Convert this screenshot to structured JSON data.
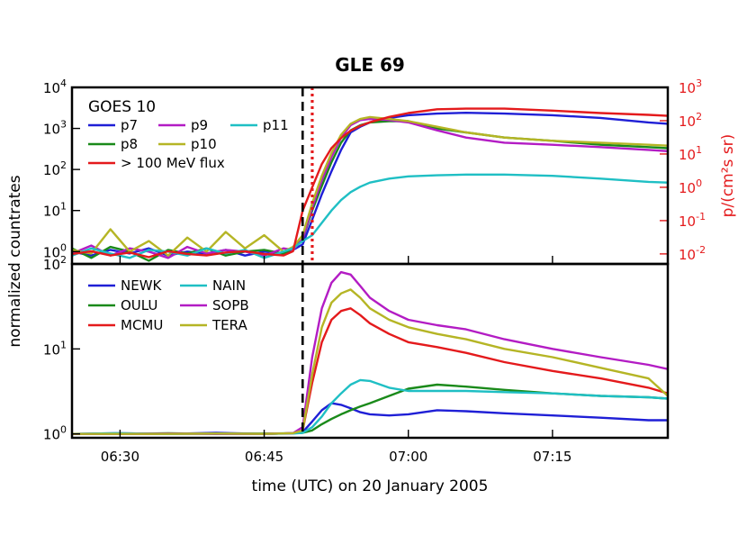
{
  "chart_data": {
    "title": "GLE 69",
    "xlabel": "time (UTC) on 20 January 2005",
    "ylabel": "normalized countrates",
    "x_tick_labels": [
      "06:30",
      "06:45",
      "07:00",
      "07:15"
    ],
    "x_ticks_min": [
      30,
      45,
      60,
      75
    ],
    "x_range_min": [
      25,
      87
    ],
    "panels": [
      {
        "type": "line",
        "yscale": "log",
        "ylim": [
          0.5,
          10000
        ],
        "y_ticks": [
          "10^0",
          "10^1",
          "10^2",
          "10^3",
          "10^4"
        ],
        "y_tick_values": [
          1,
          10,
          100,
          1000,
          10000
        ],
        "right_axis": {
          "label": "p/(cm²s sr)",
          "color": "#e41a1c",
          "ylim": [
            0.005,
            1000
          ],
          "ticks": [
            "10^-2",
            "10^-1",
            "10^0",
            "10^1",
            "10^2",
            "10^3"
          ],
          "tick_values": [
            0.01,
            0.1,
            1,
            10,
            100,
            1000
          ]
        },
        "legend_title": "GOES 10",
        "legend_placement": "upper-left",
        "event_lines": [
          {
            "x": 49.0,
            "style": "dashed",
            "color": "#000000"
          },
          {
            "x": 50.0,
            "style": "dotted",
            "color": "#e41a1c"
          }
        ],
        "series": [
          {
            "name": "p7",
            "color": "#1f1fd6",
            "x": [
              25,
              27,
              29,
              31,
              33,
              35,
              37,
              39,
              41,
              43,
              45,
              47,
              48,
              49,
              50,
              51,
              52,
              53,
              54,
              55,
              56,
              58,
              60,
              63,
              66,
              70,
              75,
              80,
              85,
              87
            ],
            "y": [
              1.0,
              0.8,
              1.1,
              0.9,
              1.2,
              0.8,
              1.0,
              0.9,
              1.1,
              0.8,
              1.0,
              0.9,
              1.1,
              1.5,
              6,
              25,
              90,
              300,
              800,
              1100,
              1400,
              1800,
              2100,
              2300,
              2400,
              2300,
              2100,
              1800,
              1400,
              1300
            ]
          },
          {
            "name": "p8",
            "color": "#1a8a1a",
            "x": [
              25,
              27,
              29,
              31,
              33,
              35,
              37,
              39,
              41,
              43,
              45,
              47,
              48,
              49,
              50,
              51,
              52,
              53,
              54,
              55,
              56,
              58,
              60,
              63,
              66,
              70,
              75,
              80,
              85,
              87
            ],
            "y": [
              1.2,
              0.7,
              1.3,
              1.0,
              0.6,
              1.1,
              0.9,
              1.2,
              0.8,
              1.0,
              1.1,
              0.9,
              1.2,
              2,
              10,
              40,
              150,
              450,
              900,
              1200,
              1400,
              1500,
              1500,
              1000,
              800,
              600,
              500,
              400,
              350,
              330
            ]
          },
          {
            "name": "p9",
            "color": "#b31cc4",
            "x": [
              25,
              27,
              29,
              31,
              33,
              35,
              37,
              39,
              41,
              43,
              45,
              47,
              48,
              49,
              50,
              51,
              52,
              53,
              54,
              55,
              56,
              58,
              60,
              63,
              66,
              70,
              75,
              80,
              85,
              87
            ],
            "y": [
              0.9,
              1.4,
              0.8,
              1.2,
              1.0,
              0.7,
              1.3,
              0.9,
              1.1,
              1.0,
              0.8,
              1.2,
              1.1,
              2,
              12,
              55,
              200,
              600,
              1200,
              1600,
              1700,
              1600,
              1400,
              900,
              600,
              450,
              400,
              350,
              300,
              280
            ]
          },
          {
            "name": "p10",
            "color": "#b5b525",
            "x": [
              25,
              27,
              29,
              31,
              33,
              35,
              37,
              39,
              41,
              43,
              45,
              47,
              48,
              49,
              50,
              51,
              52,
              53,
              54,
              55,
              56,
              58,
              60,
              63,
              66,
              70,
              75,
              80,
              85,
              87
            ],
            "y": [
              1.1,
              0.9,
              3.5,
              1.0,
              1.8,
              0.8,
              2.2,
              1.0,
              3.0,
              1.2,
              2.5,
              1.0,
              1.3,
              2.5,
              15,
              70,
              250,
              700,
              1300,
              1700,
              1900,
              1700,
              1500,
              1100,
              800,
              600,
              500,
              450,
              400,
              380
            ]
          },
          {
            "name": "p11",
            "color": "#1fbfc4",
            "x": [
              25,
              27,
              29,
              31,
              33,
              35,
              37,
              39,
              41,
              43,
              45,
              47,
              48,
              49,
              50,
              51,
              52,
              53,
              54,
              55,
              56,
              58,
              60,
              63,
              66,
              70,
              75,
              80,
              85,
              87
            ],
            "y": [
              0.8,
              1.2,
              0.9,
              0.7,
              1.1,
              1.0,
              0.8,
              1.2,
              0.9,
              1.1,
              0.7,
              1.0,
              1.2,
              1.8,
              2.5,
              5,
              10,
              18,
              28,
              38,
              48,
              60,
              68,
              72,
              75,
              75,
              70,
              60,
              50,
              48
            ]
          },
          {
            "name": "> 100 MeV flux",
            "color": "#e41a1c",
            "x": [
              25,
              27,
              29,
              31,
              33,
              35,
              37,
              39,
              41,
              43,
              45,
              47,
              48,
              49,
              50,
              51,
              52,
              53,
              54,
              55,
              56,
              58,
              60,
              63,
              66,
              70,
              75,
              80,
              85,
              87
            ],
            "y": [
              0.01,
              0.012,
              0.009,
              0.011,
              0.008,
              0.012,
              0.01,
              0.009,
              0.011,
              0.012,
              0.01,
              0.009,
              0.012,
              0.2,
              1,
              5,
              15,
              30,
              50,
              70,
              90,
              130,
              170,
              220,
              230,
              230,
              200,
              170,
              150,
              140
            ]
          }
        ]
      },
      {
        "type": "line",
        "yscale": "log",
        "ylim": [
          0.9,
          100
        ],
        "y_ticks": [
          "10^0",
          "10^1",
          "10^2"
        ],
        "y_tick_values": [
          1,
          10,
          100
        ],
        "legend_placement": "upper-left",
        "event_lines": [
          {
            "x": 49.0,
            "style": "dashed",
            "color": "#000000"
          }
        ],
        "series": [
          {
            "name": "NEWK",
            "color": "#1f1fd6",
            "x": [
              25,
              30,
              35,
              40,
              45,
              48,
              49,
              50,
              51,
              52,
              53,
              54,
              55,
              56,
              58,
              60,
              63,
              66,
              70,
              75,
              80,
              85,
              87
            ],
            "y": [
              1.0,
              1.02,
              1.0,
              1.03,
              1.0,
              1.02,
              1.05,
              1.4,
              1.9,
              2.3,
              2.2,
              2.0,
              1.8,
              1.7,
              1.65,
              1.7,
              1.9,
              1.85,
              1.75,
              1.65,
              1.55,
              1.45,
              1.45
            ]
          },
          {
            "name": "OULU",
            "color": "#1a8a1a",
            "x": [
              25,
              30,
              35,
              40,
              45,
              48,
              49,
              50,
              51,
              52,
              53,
              54,
              55,
              56,
              58,
              60,
              63,
              66,
              70,
              75,
              80,
              85,
              87
            ],
            "y": [
              1.0,
              1.0,
              1.02,
              1.0,
              1.01,
              1.02,
              1.03,
              1.1,
              1.3,
              1.5,
              1.7,
              1.9,
              2.1,
              2.3,
              2.8,
              3.4,
              3.8,
              3.6,
              3.3,
              3.0,
              2.8,
              2.7,
              2.6
            ]
          },
          {
            "name": "MCMU",
            "color": "#e41a1c",
            "x": [
              25,
              30,
              35,
              40,
              45,
              48,
              49,
              50,
              51,
              52,
              53,
              54,
              55,
              56,
              58,
              60,
              63,
              66,
              70,
              75,
              80,
              85,
              87
            ],
            "y": [
              1.0,
              1.0,
              1.0,
              1.01,
              1.0,
              1.02,
              1.1,
              4,
              12,
              22,
              28,
              30,
              25,
              20,
              15,
              12,
              10.5,
              9,
              7,
              5.5,
              4.5,
              3.5,
              3.0
            ]
          },
          {
            "name": "NAIN",
            "color": "#1fbfc4",
            "x": [
              25,
              30,
              35,
              40,
              45,
              48,
              49,
              50,
              51,
              52,
              53,
              54,
              55,
              56,
              58,
              60,
              63,
              66,
              70,
              75,
              80,
              85,
              87
            ],
            "y": [
              1.0,
              1.02,
              1.0,
              1.01,
              1.0,
              1.01,
              1.03,
              1.2,
              1.6,
              2.3,
              3.0,
              3.8,
              4.3,
              4.2,
              3.5,
              3.2,
              3.2,
              3.2,
              3.1,
              3.0,
              2.8,
              2.7,
              2.6
            ]
          },
          {
            "name": "SOPB",
            "color": "#b31cc4",
            "x": [
              25,
              30,
              35,
              40,
              45,
              48,
              49,
              50,
              51,
              52,
              53,
              54,
              55,
              56,
              58,
              60,
              63,
              66,
              70,
              75,
              80,
              85,
              87
            ],
            "y": [
              1.0,
              1.0,
              1.01,
              1.0,
              1.0,
              1.02,
              1.2,
              8,
              30,
              60,
              80,
              75,
              55,
              40,
              28,
              22,
              19,
              17,
              13,
              10,
              8,
              6.5,
              5.8
            ]
          },
          {
            "name": "TERA",
            "color": "#b5b525",
            "x": [
              25,
              30,
              35,
              40,
              45,
              48,
              49,
              50,
              51,
              52,
              53,
              54,
              55,
              56,
              58,
              60,
              63,
              66,
              70,
              75,
              80,
              85,
              87
            ],
            "y": [
              1.0,
              1.0,
              1.0,
              1.01,
              1.0,
              1.02,
              1.1,
              5,
              18,
              35,
              45,
              50,
              40,
              30,
              22,
              18,
              15,
              13,
              10,
              8,
              6,
              4.5,
              2.8
            ]
          }
        ]
      }
    ]
  }
}
